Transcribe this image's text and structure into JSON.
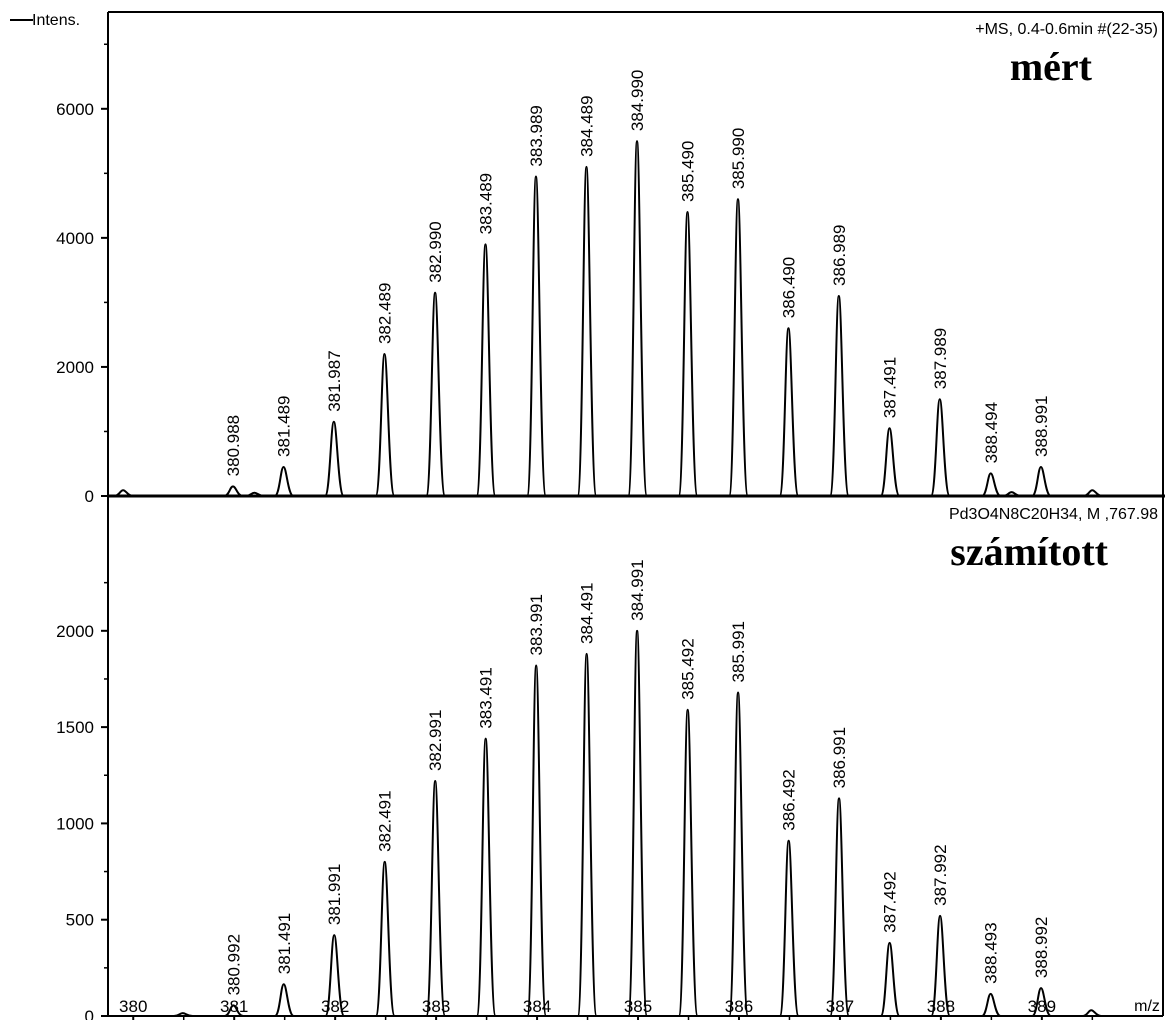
{
  "chart_data": [
    {
      "type": "line",
      "panel": "measured",
      "ylabel": "Intens.",
      "info": "+MS, 0.4-0.6min #(22-35)",
      "annotation": "mért",
      "ylim": [
        0,
        7500
      ],
      "yticks": [
        0,
        2000,
        4000,
        6000
      ],
      "peaks": [
        {
          "mz": 380.988,
          "label": "380.988",
          "intensity": 150
        },
        {
          "mz": 381.489,
          "label": "381.489",
          "intensity": 450
        },
        {
          "mz": 381.987,
          "label": "381.987",
          "intensity": 1150
        },
        {
          "mz": 382.489,
          "label": "382.489",
          "intensity": 2200
        },
        {
          "mz": 382.99,
          "label": "382.990",
          "intensity": 3150
        },
        {
          "mz": 383.489,
          "label": "383.489",
          "intensity": 3900
        },
        {
          "mz": 383.989,
          "label": "383.989",
          "intensity": 4950
        },
        {
          "mz": 384.489,
          "label": "384.489",
          "intensity": 5100
        },
        {
          "mz": 384.99,
          "label": "384.990",
          "intensity": 5500
        },
        {
          "mz": 385.49,
          "label": "385.490",
          "intensity": 4400
        },
        {
          "mz": 385.99,
          "label": "385.990",
          "intensity": 4600
        },
        {
          "mz": 386.49,
          "label": "386.490",
          "intensity": 2600
        },
        {
          "mz": 386.989,
          "label": "386.989",
          "intensity": 3100
        },
        {
          "mz": 387.491,
          "label": "387.491",
          "intensity": 1050
        },
        {
          "mz": 387.989,
          "label": "387.989",
          "intensity": 1500
        },
        {
          "mz": 388.494,
          "label": "388.494",
          "intensity": 350
        },
        {
          "mz": 388.991,
          "label": "388.991",
          "intensity": 450
        }
      ],
      "minor_peaks": [
        {
          "mz": 379.9,
          "intensity": 90
        },
        {
          "mz": 381.2,
          "intensity": 50
        },
        {
          "mz": 388.7,
          "intensity": 60
        },
        {
          "mz": 389.5,
          "intensity": 90
        }
      ]
    },
    {
      "type": "line",
      "panel": "calculated",
      "info": "Pd3O4N8C20H34, M ,767.98",
      "annotation": "számított",
      "xlabel": "m/z",
      "xlim": [
        379.75,
        390.2
      ],
      "xticks": [
        380,
        381,
        382,
        383,
        384,
        385,
        386,
        387,
        388,
        389
      ],
      "ylim": [
        0,
        2700
      ],
      "yticks": [
        0,
        500,
        1000,
        1500,
        2000
      ],
      "peaks": [
        {
          "mz": 380.992,
          "label": "380.992",
          "intensity": 55
        },
        {
          "mz": 381.491,
          "label": "381.491",
          "intensity": 165
        },
        {
          "mz": 381.991,
          "label": "381.991",
          "intensity": 420
        },
        {
          "mz": 382.491,
          "label": "382.491",
          "intensity": 800
        },
        {
          "mz": 382.991,
          "label": "382.991",
          "intensity": 1220
        },
        {
          "mz": 383.491,
          "label": "383.491",
          "intensity": 1440
        },
        {
          "mz": 383.991,
          "label": "383.991",
          "intensity": 1820
        },
        {
          "mz": 384.491,
          "label": "384.491",
          "intensity": 1880
        },
        {
          "mz": 384.991,
          "label": "384.991",
          "intensity": 2000
        },
        {
          "mz": 385.492,
          "label": "385.492",
          "intensity": 1590
        },
        {
          "mz": 385.991,
          "label": "385.991",
          "intensity": 1680
        },
        {
          "mz": 386.492,
          "label": "386.492",
          "intensity": 910
        },
        {
          "mz": 386.991,
          "label": "386.991",
          "intensity": 1130
        },
        {
          "mz": 387.492,
          "label": "387.492",
          "intensity": 380
        },
        {
          "mz": 387.992,
          "label": "387.992",
          "intensity": 520
        },
        {
          "mz": 388.493,
          "label": "388.493",
          "intensity": 115
        },
        {
          "mz": 388.992,
          "label": "388.992",
          "intensity": 145
        }
      ],
      "minor_peaks": [
        {
          "mz": 380.49,
          "intensity": 15
        },
        {
          "mz": 389.49,
          "intensity": 30
        }
      ]
    }
  ]
}
